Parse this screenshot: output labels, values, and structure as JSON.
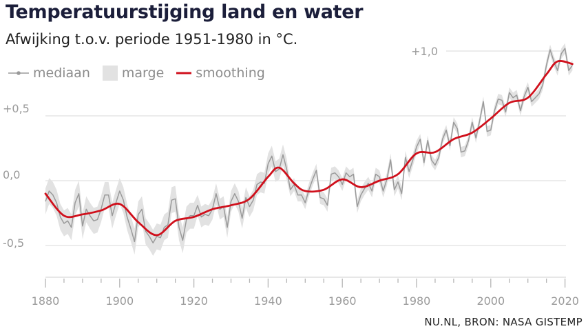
{
  "title": "Temperatuurstijging land en water",
  "subtitle": "Afwijking t.o.v. periode 1951-1980 in °C.",
  "source": "NU.NL, BRON: NASA GISTEMP",
  "colors": {
    "median": "#9a9a9a",
    "band": "#e2e2e2",
    "smooth": "#d0101c",
    "grid": "#d9d9d9",
    "text": "#9a9a9a"
  },
  "chart_data": {
    "type": "line",
    "title": "Temperatuurstijging land en water",
    "subtitle": "Afwijking t.o.v. periode 1951-1980 in °C.",
    "xlim": [
      1880,
      2022
    ],
    "ylim": [
      -0.7,
      1.1
    ],
    "x_ticks": [
      1880,
      1900,
      1920,
      1940,
      1960,
      1980,
      2000,
      2020
    ],
    "y_ticks": [
      {
        "value": 1.0,
        "label": "+1,0"
      },
      {
        "value": 0.5,
        "label": "+0,5"
      },
      {
        "value": 0.0,
        "label": "0,0"
      },
      {
        "value": -0.5,
        "label": "-0,5"
      }
    ],
    "grid": true,
    "legend_position": "top-left",
    "legend": [
      {
        "key": "median",
        "label": "mediaan"
      },
      {
        "key": "band",
        "label": "marge"
      },
      {
        "key": "smooth",
        "label": "smoothing"
      }
    ],
    "band_halfwidth": [
      {
        "from": 1880,
        "to": 1920,
        "value": 0.1
      },
      {
        "from": 1920,
        "to": 1945,
        "value": 0.08
      },
      {
        "from": 1945,
        "to": 1980,
        "value": 0.05
      },
      {
        "from": 1980,
        "to": 2022,
        "value": 0.04
      }
    ],
    "series": [
      {
        "key": "median",
        "name": "mediaan",
        "x": [
          1880,
          1881,
          1882,
          1883,
          1884,
          1885,
          1886,
          1887,
          1888,
          1889,
          1890,
          1891,
          1892,
          1893,
          1894,
          1895,
          1896,
          1897,
          1898,
          1899,
          1900,
          1901,
          1902,
          1903,
          1904,
          1905,
          1906,
          1907,
          1908,
          1909,
          1910,
          1911,
          1912,
          1913,
          1914,
          1915,
          1916,
          1917,
          1918,
          1919,
          1920,
          1921,
          1922,
          1923,
          1924,
          1925,
          1926,
          1927,
          1928,
          1929,
          1930,
          1931,
          1932,
          1933,
          1934,
          1935,
          1936,
          1937,
          1938,
          1939,
          1940,
          1941,
          1942,
          1943,
          1944,
          1945,
          1946,
          1947,
          1948,
          1949,
          1950,
          1951,
          1952,
          1953,
          1954,
          1955,
          1956,
          1957,
          1958,
          1959,
          1960,
          1961,
          1962,
          1963,
          1964,
          1965,
          1966,
          1967,
          1968,
          1969,
          1970,
          1971,
          1972,
          1973,
          1974,
          1975,
          1976,
          1977,
          1978,
          1979,
          1980,
          1981,
          1982,
          1983,
          1984,
          1985,
          1986,
          1987,
          1988,
          1989,
          1990,
          1991,
          1992,
          1993,
          1994,
          1995,
          1996,
          1997,
          1998,
          1999,
          2000,
          2001,
          2002,
          2003,
          2004,
          2005,
          2006,
          2007,
          2008,
          2009,
          2010,
          2011,
          2012,
          2013,
          2014,
          2015,
          2016,
          2017,
          2018,
          2019,
          2020,
          2021,
          2022
        ],
        "y": [
          -0.16,
          -0.08,
          -0.11,
          -0.17,
          -0.28,
          -0.33,
          -0.31,
          -0.36,
          -0.17,
          -0.1,
          -0.35,
          -0.22,
          -0.27,
          -0.31,
          -0.3,
          -0.22,
          -0.11,
          -0.11,
          -0.27,
          -0.17,
          -0.08,
          -0.15,
          -0.28,
          -0.37,
          -0.47,
          -0.26,
          -0.22,
          -0.39,
          -0.43,
          -0.48,
          -0.43,
          -0.44,
          -0.36,
          -0.34,
          -0.15,
          -0.14,
          -0.36,
          -0.46,
          -0.3,
          -0.27,
          -0.27,
          -0.19,
          -0.28,
          -0.26,
          -0.27,
          -0.22,
          -0.1,
          -0.22,
          -0.2,
          -0.36,
          -0.16,
          -0.1,
          -0.16,
          -0.29,
          -0.13,
          -0.2,
          -0.15,
          -0.03,
          -0.01,
          -0.02,
          0.13,
          0.19,
          0.07,
          0.09,
          0.2,
          0.09,
          -0.07,
          -0.03,
          -0.11,
          -0.11,
          -0.17,
          -0.07,
          0.01,
          0.08,
          -0.13,
          -0.14,
          -0.19,
          0.05,
          0.06,
          0.03,
          -0.03,
          0.06,
          0.03,
          0.05,
          -0.2,
          -0.11,
          -0.06,
          -0.02,
          -0.08,
          0.05,
          0.03,
          -0.08,
          0.01,
          0.16,
          -0.07,
          -0.01,
          -0.1,
          0.18,
          0.07,
          0.16,
          0.26,
          0.32,
          0.14,
          0.31,
          0.16,
          0.12,
          0.18,
          0.32,
          0.39,
          0.27,
          0.45,
          0.4,
          0.22,
          0.23,
          0.31,
          0.45,
          0.33,
          0.46,
          0.61,
          0.38,
          0.39,
          0.54,
          0.63,
          0.62,
          0.53,
          0.68,
          0.64,
          0.66,
          0.54,
          0.65,
          0.72,
          0.61,
          0.64,
          0.67,
          0.74,
          0.89,
          1.01,
          0.92,
          0.85,
          0.98,
          1.02,
          0.85,
          0.89
        ]
      },
      {
        "key": "smooth",
        "name": "smoothing",
        "x": [
          1880,
          1885,
          1890,
          1895,
          1900,
          1905,
          1910,
          1915,
          1920,
          1925,
          1930,
          1935,
          1940,
          1943,
          1947,
          1950,
          1955,
          1960,
          1965,
          1970,
          1975,
          1980,
          1985,
          1990,
          1995,
          2000,
          2005,
          2010,
          2015,
          2018,
          2022
        ],
        "y": [
          -0.1,
          -0.27,
          -0.26,
          -0.23,
          -0.18,
          -0.32,
          -0.42,
          -0.31,
          -0.28,
          -0.22,
          -0.19,
          -0.14,
          0.03,
          0.1,
          -0.02,
          -0.08,
          -0.07,
          0.01,
          -0.05,
          0.0,
          0.05,
          0.21,
          0.22,
          0.32,
          0.37,
          0.48,
          0.6,
          0.64,
          0.82,
          0.92,
          0.9
        ]
      }
    ]
  }
}
